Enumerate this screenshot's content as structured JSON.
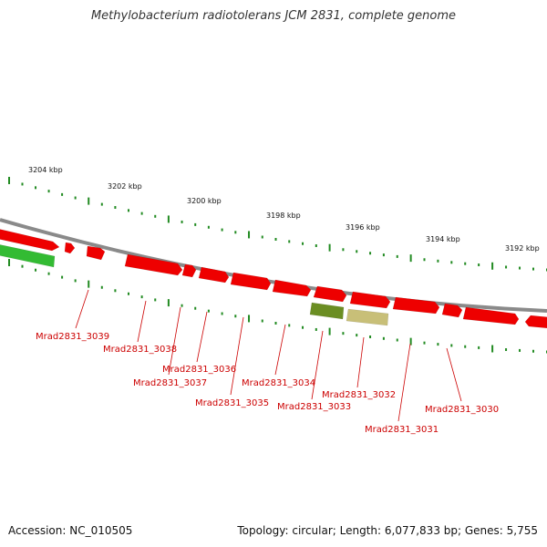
{
  "title": "Methylobacterium radiotolerans JCM 2831, complete genome",
  "accession": "Accession: NC_010505",
  "summary": "Topology: circular; Length: 6,077,833 bp; Genes: 5,755",
  "colors": {
    "backbone": "#8a8a8a",
    "gene_forward": "#ee0000",
    "gene_reverse": "#33bb33",
    "olive_gene": "#6b8e23",
    "pale_gene": "#c8bf78",
    "tick": "#228b22",
    "label": "#cc0000"
  },
  "scale_labels": [
    "3204 kbp",
    "3202 kbp",
    "3200 kbp",
    "3198 kbp",
    "3196 kbp",
    "3194 kbp",
    "3192 kbp"
  ],
  "gene_labels": [
    "Mrad2831_3039",
    "Mrad2831_3038",
    "Mrad2831_3037",
    "Mrad2831_3036",
    "Mrad2831_3035",
    "Mrad2831_3034",
    "Mrad2831_3033",
    "Mrad2831_3032",
    "Mrad2831_3031",
    "Mrad2831_3030"
  ]
}
